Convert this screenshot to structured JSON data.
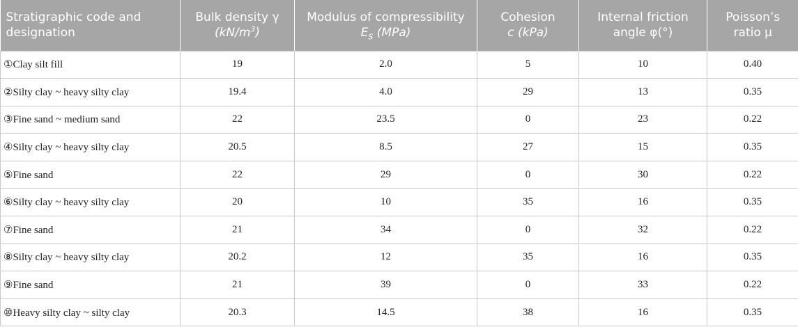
{
  "table": {
    "headers": [
      {
        "line1": "Stratigraphic code and",
        "line2": "designation"
      },
      {
        "line1": "Bulk density γ",
        "line2a": "(kN/m",
        "sup": "3",
        "line2b": ")"
      },
      {
        "line1": "Modulus of compressibility",
        "sym": "E",
        "sub": "S",
        "unit": " (MPa)"
      },
      {
        "line1": "Cohesion",
        "line2": "c (kPa)"
      },
      {
        "line1": "Internal friction",
        "line2": "angle φ(°)"
      },
      {
        "line1": "Poisson’s",
        "line2": "ratio μ"
      }
    ],
    "rows": [
      {
        "name": "①Clay silt fill",
        "density": "19",
        "modulus": "2.0",
        "cohesion": "5",
        "friction": "10",
        "poisson": "0.40"
      },
      {
        "name": "②Silty clay ~ heavy silty clay",
        "density": "19.4",
        "modulus": "4.0",
        "cohesion": "29",
        "friction": "13",
        "poisson": "0.35"
      },
      {
        "name": "③Fine sand ~ medium sand",
        "density": "22",
        "modulus": "23.5",
        "cohesion": "0",
        "friction": "23",
        "poisson": "0.22"
      },
      {
        "name": "④Silty clay ~ heavy silty clay",
        "density": "20.5",
        "modulus": "8.5",
        "cohesion": "27",
        "friction": "15",
        "poisson": "0.35"
      },
      {
        "name": "⑤Fine sand",
        "density": "22",
        "modulus": "29",
        "cohesion": "0",
        "friction": "30",
        "poisson": "0.22"
      },
      {
        "name": "⑥Silty clay ~ heavy silty clay",
        "density": "20",
        "modulus": "10",
        "cohesion": "35",
        "friction": "16",
        "poisson": "0.35"
      },
      {
        "name": "⑦Fine sand",
        "density": "21",
        "modulus": "34",
        "cohesion": "0",
        "friction": "32",
        "poisson": "0.22"
      },
      {
        "name": "⑧Silty clay ~ heavy silty clay",
        "density": "20.2",
        "modulus": "12",
        "cohesion": "35",
        "friction": "16",
        "poisson": "0.35"
      },
      {
        "name": "⑨Fine sand",
        "density": "21",
        "modulus": "39",
        "cohesion": "0",
        "friction": "33",
        "poisson": "0.22"
      },
      {
        "name": "⑩Heavy silty clay ~ silty clay",
        "density": "20.3",
        "modulus": "14.5",
        "cohesion": "38",
        "friction": "16",
        "poisson": "0.35"
      }
    ]
  }
}
